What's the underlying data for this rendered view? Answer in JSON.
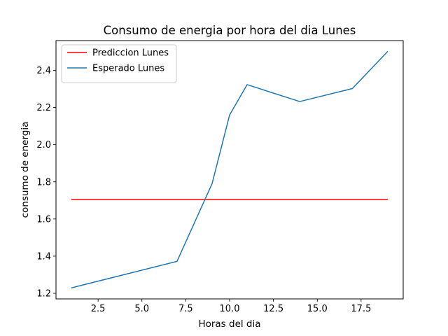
{
  "chart_data": {
    "type": "line",
    "title": "Consumo de energia por hora del dia Lunes",
    "xlabel": "Horas del dia",
    "ylabel": "consumo de energia",
    "xlim": [
      0.1,
      19.9
    ],
    "ylim": [
      1.17,
      2.56
    ],
    "xticks": [
      2.5,
      5.0,
      7.5,
      10.0,
      12.5,
      15.0,
      17.5
    ],
    "xtick_labels": [
      "2.5",
      "5.0",
      "7.5",
      "10.0",
      "12.5",
      "15.0",
      "17.5"
    ],
    "yticks": [
      1.2,
      1.4,
      1.6,
      1.8,
      2.0,
      2.2,
      2.4
    ],
    "ytick_labels": [
      "1.2",
      "1.4",
      "1.6",
      "1.8",
      "2.0",
      "2.2",
      "2.4"
    ],
    "grid": false,
    "legend_position": "top-left",
    "series": [
      {
        "name": "Prediccion Lunes",
        "color": "#ff0000",
        "x": [
          1,
          19
        ],
        "y": [
          1.705,
          1.705
        ]
      },
      {
        "name": "Esperado Lunes",
        "color": "#1f77b4",
        "x": [
          1,
          7,
          9,
          10,
          11,
          14,
          17,
          19
        ],
        "y": [
          1.23,
          1.372,
          1.79,
          2.16,
          2.323,
          2.232,
          2.302,
          2.5
        ]
      }
    ]
  }
}
